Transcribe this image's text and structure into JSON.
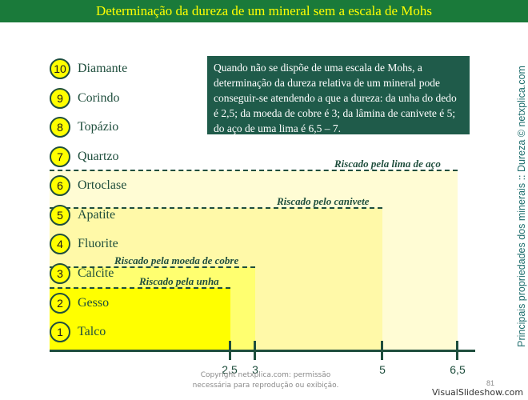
{
  "title": "Determinação da dureza de um mineral sem a escala de Mohs",
  "minerals": [
    {
      "n": "10",
      "name": "Diamante"
    },
    {
      "n": "9",
      "name": "Corindo"
    },
    {
      "n": "8",
      "name": "Topázio"
    },
    {
      "n": "7",
      "name": "Quartzo"
    },
    {
      "n": "6",
      "name": "Ortoclase"
    },
    {
      "n": "5",
      "name": "Apatite"
    },
    {
      "n": "4",
      "name": "Fluorite"
    },
    {
      "n": "3",
      "name": "Calcite"
    },
    {
      "n": "2",
      "name": "Gesso"
    },
    {
      "n": "1",
      "name": "Talco"
    }
  ],
  "note": "Quando não se dispõe de uma escala de Mohs, a determinação da dureza relativa de um mineral pode conseguir-se atendendo a que a dureza: da unha do dedo é 2,5; da moeda de cobre é 3; da lâmina de canivete é 5; do aço de uma lima é 6,5 – 7.",
  "scratch_levels": [
    {
      "label": "Riscado pela lima de aço",
      "hardness": 6.5
    },
    {
      "label": "Riscado pelo canivete",
      "hardness": 5
    },
    {
      "label": "Riscado pela moeda de cobre",
      "hardness": 3
    },
    {
      "label": "Riscado pela unha",
      "hardness": 2.5
    }
  ],
  "axis_ticks": [
    "2,5",
    "3",
    "5",
    "6,5"
  ],
  "copyright": "Copyright netxplica.com: permissão necessária para reprodução ou exibição.",
  "page_number": "81",
  "side_text": "Principais propriedades dos minerais :: Dureza © netxplica.com",
  "watermark": "VisualSlideshow.com",
  "colors": {
    "title_bg": "#1a7a3a",
    "title_text": "#ffff00",
    "badge": "#ffff00",
    "dark_green": "#1f4e3d",
    "note_bg": "#1f5b4a"
  }
}
